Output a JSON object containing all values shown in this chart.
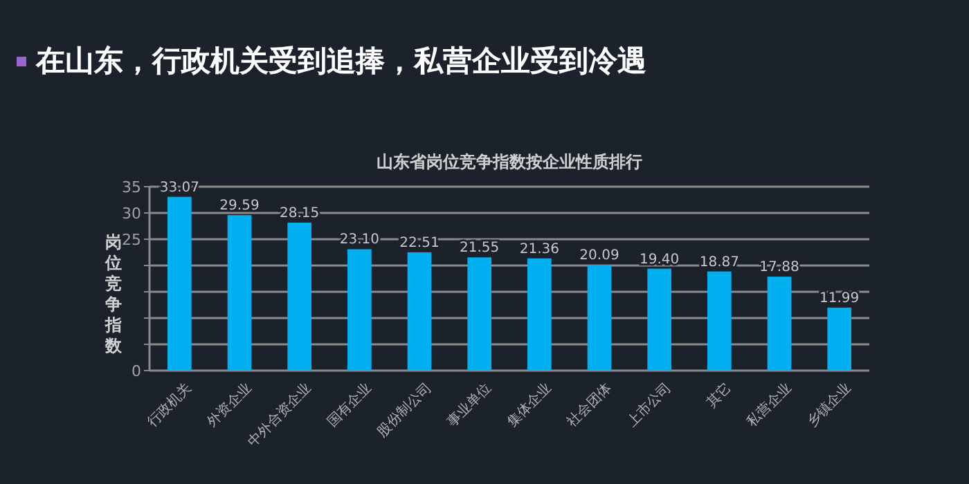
{
  "chart_data": {
    "type": "bar",
    "title": "在山东，行政机关受到追捧，私营企业受到冷遇",
    "subtitle": "山东省岗位竞争指数按企业性质排行",
    "ylabel": "岗位竞争指数",
    "categories": [
      "行政机关",
      "外资企业",
      "中外合资企业",
      "国有企业",
      "股份制公司",
      "事业单位",
      "集体企业",
      "社会团体",
      "上市公司",
      "其它",
      "私营企业",
      "乡镇企业"
    ],
    "values": [
      33.07,
      29.59,
      28.15,
      23.1,
      22.51,
      21.55,
      21.36,
      20.09,
      19.4,
      18.87,
      17.88,
      11.99
    ],
    "value_labels": [
      "33.07",
      "29.59",
      "28.15",
      "23.10",
      "22.51",
      "21.55",
      "21.36",
      "20.09",
      "19.40",
      "18.87",
      "17.88",
      "11.99"
    ],
    "color": "#00b0f0",
    "ylim": [
      0,
      35
    ],
    "yticks": [
      0,
      {
        "value": 5,
        "label": null
      },
      {
        "value": 10,
        "label": null
      },
      {
        "value": 15,
        "label": null
      },
      {
        "value": 20,
        "label": null
      },
      25,
      30,
      35
    ],
    "grid": "y"
  }
}
